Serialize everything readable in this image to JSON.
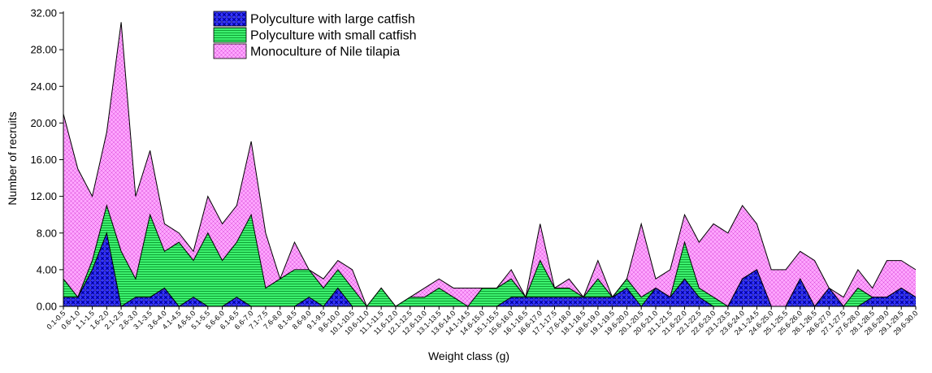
{
  "chart_data": {
    "type": "area",
    "xlabel": "Weight class (g)",
    "ylabel": "Number of recruits",
    "ylim": [
      0,
      32
    ],
    "yticks": [
      "0.00",
      "4.00",
      "8.00",
      "12.00",
      "16.00",
      "20.00",
      "24.00",
      "28.00",
      "32.00"
    ],
    "stacked": true,
    "legend_position": "top-center",
    "categories": [
      "0.1-0.5",
      "0.6-1.0",
      "1.1-1.5",
      "1.6-2.0",
      "2.1-2.5",
      "2.6-3.0",
      "3.1-3.5",
      "3.6-4.0",
      "4.1-4.5",
      "4.6-5.0",
      "5.1-5.5",
      "5.6-6.0",
      "6.1-6.5",
      "6.6-7.0",
      "7.1-7.5",
      "7.6-8.0",
      "8.1-8.5",
      "8.6-9.0",
      "9.1-9.5",
      "9.6-10.0",
      "10.1-10.5",
      "10.6-11.0",
      "11.1-11.5",
      "11.6-12.0",
      "12.1-12.5",
      "12.6-13.0",
      "13.1-13.5",
      "13.6-14.0",
      "14.1-14.5",
      "14.6-15.0",
      "15.1-15.5",
      "15.6-16.0",
      "16.1-16.5",
      "16.6-17.0",
      "17.1-17.5",
      "17.6-18.0",
      "18.1-18.5",
      "18.6-19.0",
      "19.1-19.5",
      "19.6-20.0",
      "20.1-20.5",
      "20.6-21.0",
      "21.1-21.5",
      "21.6-22.0",
      "22.1-22.5",
      "22.6-23.0",
      "23.1-23.5",
      "23.6-24.0",
      "24.1-24.5",
      "24.6-25.0",
      "25.1-25.5",
      "25.6-26.0",
      "26.1-26.5",
      "26.6-27.0",
      "27.1-27.5",
      "27.6-28.0",
      "28.1-28.5",
      "28.6-29.0",
      "29.1-29.5",
      "29.6-30.0"
    ],
    "series": [
      {
        "name": "Polyculture with large catfish",
        "color": "#1a1aff",
        "pattern": "crosshatch",
        "values": [
          1,
          1,
          4,
          8,
          0,
          1,
          1,
          2,
          0,
          1,
          0,
          0,
          1,
          0,
          0,
          0,
          0,
          1,
          0,
          2,
          0,
          0,
          0,
          0,
          0,
          0,
          0,
          0,
          0,
          0,
          0,
          1,
          1,
          1,
          1,
          1,
          1,
          1,
          1,
          2,
          0,
          2,
          1,
          3,
          1,
          0,
          0,
          3,
          4,
          0,
          0,
          3,
          0,
          2,
          0,
          0,
          1,
          1,
          2,
          1
        ]
      },
      {
        "name": "Polyculture with small catfish",
        "color": "#33ee66",
        "pattern": "horizontal-lines",
        "values": [
          2,
          0,
          1,
          3,
          6,
          2,
          9,
          4,
          7,
          4,
          8,
          5,
          6,
          10,
          2,
          3,
          4,
          3,
          2,
          2,
          2,
          0,
          2,
          0,
          1,
          1,
          2,
          1,
          0,
          2,
          2,
          2,
          0,
          4,
          1,
          1,
          0,
          2,
          0,
          1,
          1,
          0,
          0,
          4,
          1,
          1,
          0,
          0,
          0,
          0,
          0,
          0,
          0,
          0,
          0,
          2,
          0,
          0,
          0,
          0
        ]
      },
      {
        "name": "Monoculture of Nile tilapia",
        "color": "#ff99ff",
        "pattern": "grid",
        "values": [
          18,
          14,
          7,
          8,
          25,
          9,
          7,
          3,
          1,
          1,
          4,
          4,
          4,
          8,
          6,
          0,
          3,
          0,
          1,
          1,
          2,
          0,
          0,
          0,
          0,
          1,
          1,
          1,
          2,
          0,
          0,
          1,
          0,
          4,
          0,
          1,
          0,
          2,
          0,
          0,
          8,
          1,
          3,
          3,
          5,
          8,
          8,
          8,
          5,
          4,
          4,
          3,
          5,
          0,
          1,
          2,
          1,
          4,
          3,
          3
        ]
      }
    ]
  }
}
